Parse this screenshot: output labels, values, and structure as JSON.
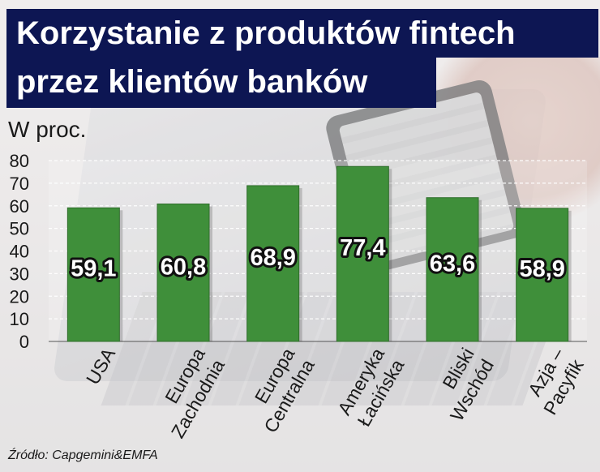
{
  "title": {
    "line1": "Korzystanie z produktów fintech",
    "line2": "przez klientów banków"
  },
  "unit_label": "W proc.",
  "source": "Źródło: Capgemini&EMFA",
  "colors": {
    "bar": "#3f8f3a",
    "bar_border": "#2f6d2b",
    "title_bg": "#0d1653",
    "title_text": "#ffffff",
    "value_label": "#ffffff",
    "value_label_outline": "#111111"
  },
  "chart_data": {
    "type": "bar",
    "categories": [
      [
        "USA"
      ],
      [
        "Europa",
        "Zachodnia"
      ],
      [
        "Europa",
        "Centralna"
      ],
      [
        "Ameryka",
        "Łacińska"
      ],
      [
        "Bliski",
        "Wschód"
      ],
      [
        "Azja –",
        "Pacyfik"
      ]
    ],
    "values": [
      59.1,
      60.8,
      68.9,
      77.4,
      63.6,
      58.9
    ],
    "value_labels": [
      "59,1",
      "60,8",
      "68,9",
      "77,4",
      "63,6",
      "58,9"
    ],
    "title": "Korzystanie z produktów fintech przez klientów banków",
    "ylabel": "W proc.",
    "ylim": [
      0,
      80
    ],
    "yticks": [
      0,
      10,
      20,
      30,
      40,
      50,
      60,
      70,
      80
    ],
    "grid": true,
    "legend": "none"
  }
}
